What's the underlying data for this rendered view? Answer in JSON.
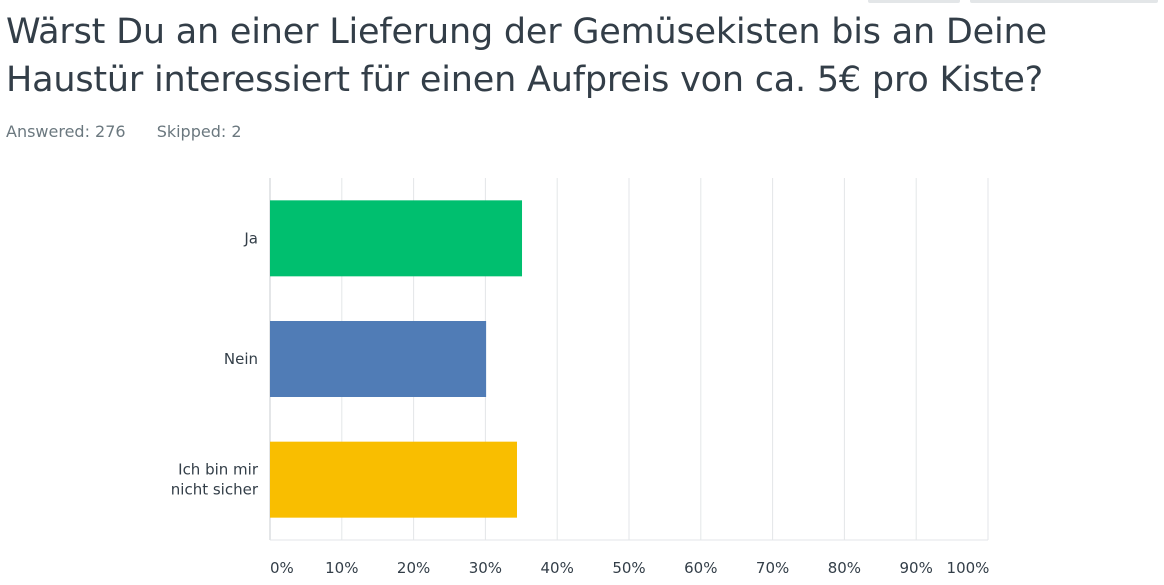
{
  "question": {
    "title": "Wärst Du an einer Lieferung der Gemüsekisten bis an Deine Haustür interessiert für einen Aufpreis von ca. 5€ pro Kiste?"
  },
  "stats": {
    "answered": "Answered: 276",
    "skipped": "Skipped: 2"
  },
  "chart_data": {
    "type": "bar",
    "orientation": "horizontal",
    "categories": [
      "Ja",
      "Nein",
      "Ich bin mir nicht sicher"
    ],
    "values": [
      35.1,
      30.1,
      34.4
    ],
    "xlim": [
      0,
      100
    ],
    "xticks": [
      "0%",
      "10%",
      "20%",
      "30%",
      "40%",
      "50%",
      "60%",
      "70%",
      "80%",
      "90%",
      "100%"
    ],
    "grid": true,
    "colors": [
      "#00bf6f",
      "#507cb6",
      "#f9be00"
    ]
  }
}
